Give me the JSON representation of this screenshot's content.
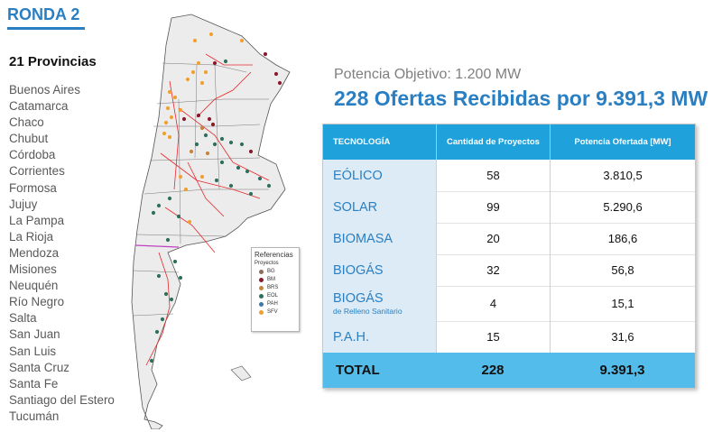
{
  "header": {
    "title": "RONDA 2"
  },
  "provinces": {
    "title": "21 Provincias",
    "items": [
      "Buenos Aires",
      "Catamarca",
      "Chaco",
      "Chubut",
      "Córdoba",
      "Corrientes",
      "Formosa",
      "Jujuy",
      "La Pampa",
      "La Rioja",
      "Mendoza",
      "Misiones",
      "Neuquén",
      "Río Negro",
      "Salta",
      "San Juan",
      "San Luis",
      "Santa Cruz",
      "Santa Fe",
      "Santiago del Estero",
      "Tucumán"
    ]
  },
  "summary": {
    "objective": "Potencia Objetivo: 1.200 MW",
    "headline": "228 Ofertas Recibidas por 9.391,3 MW"
  },
  "table": {
    "headers": [
      "TECNOLOGÍA",
      "Cantidad de Proyectos",
      "Potencia Ofertada [MW]"
    ],
    "rows": [
      {
        "tech": "EÓLICO",
        "sub": "",
        "count": "58",
        "power": "3.810,5"
      },
      {
        "tech": "SOLAR",
        "sub": "",
        "count": "99",
        "power": "5.290,6"
      },
      {
        "tech": "BIOMASA",
        "sub": "",
        "count": "20",
        "power": "186,6"
      },
      {
        "tech": "BIOGÁS",
        "sub": "",
        "count": "32",
        "power": "56,8"
      },
      {
        "tech": "BIOGÁS",
        "sub": "de Relleno Sanitario",
        "count": "4",
        "power": "15,1"
      },
      {
        "tech": "P.A.H.",
        "sub": "",
        "count": "15",
        "power": "31,6"
      }
    ],
    "total": {
      "label": "TOTAL",
      "count": "228",
      "power": "9.391,3"
    }
  },
  "legend": {
    "title": "Referencias",
    "subtitle": "Proyectos",
    "items": [
      {
        "code": "BG",
        "color": "#8a6d5a"
      },
      {
        "code": "BM",
        "color": "#8b1a2e"
      },
      {
        "code": "BRS",
        "color": "#c8843a"
      },
      {
        "code": "EOL",
        "color": "#2f6f5e"
      },
      {
        "code": "PAH",
        "color": "#3a78b0"
      },
      {
        "code": "SFV",
        "color": "#f0a030"
      }
    ]
  },
  "colors": {
    "accent": "#2a7fc2",
    "table_header": "#1fa2dc",
    "total_row": "#54bcea",
    "tech_cell": "#dcebf5",
    "grid_line": "#e8272b"
  }
}
